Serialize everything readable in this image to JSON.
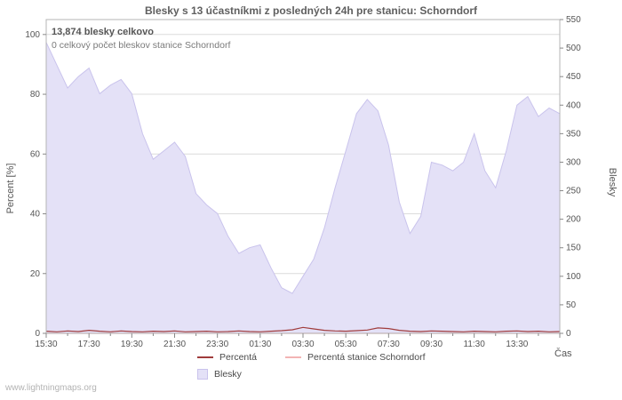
{
  "title": "Blesky s 13 účastníkmi z posledných 24h pre stanicu: Schorndorf",
  "annotations": {
    "total": "13,874 blesky celkovo",
    "station_total": "0 celkový počet bleskov stanice Schorndorf"
  },
  "watermark": "www.lightningmaps.org",
  "legend": {
    "items": [
      {
        "label": "Percentá",
        "color": "#a03c3c",
        "type": "line"
      },
      {
        "label": "Percentá stanice Schorndorf",
        "color": "#f2b4b4",
        "type": "line"
      },
      {
        "label": "Blesky",
        "color": "#e4e1f7",
        "type": "area"
      }
    ]
  },
  "chart_data": {
    "type": "area",
    "title": "Blesky s 13 účastníkmi z posledných 24h pre stanicu: Schorndorf",
    "xlabel": "Čas",
    "ylabel_left": "Percent  [%]",
    "ylabel_right": "Blesky",
    "legend_position": "bottom",
    "grid": true,
    "ylim_left": [
      0,
      105
    ],
    "ylim_right": [
      0,
      550
    ],
    "left_ticks": [
      0,
      20,
      40,
      60,
      80,
      100
    ],
    "right_ticks": [
      0,
      50,
      100,
      150,
      200,
      250,
      300,
      350,
      400,
      450,
      500,
      550
    ],
    "x_ticks": [
      "15:30",
      "17:30",
      "19:30",
      "21:30",
      "23:30",
      "01:30",
      "03:30",
      "05:30",
      "07:30",
      "09:30",
      "11:30",
      "13:30"
    ],
    "x": [
      "15:30",
      "16:00",
      "16:30",
      "17:00",
      "17:30",
      "18:00",
      "18:30",
      "19:00",
      "19:30",
      "20:00",
      "20:30",
      "21:00",
      "21:30",
      "22:00",
      "22:30",
      "23:00",
      "23:30",
      "00:00",
      "00:30",
      "01:00",
      "01:30",
      "02:00",
      "02:30",
      "03:00",
      "03:30",
      "04:00",
      "04:30",
      "05:00",
      "05:30",
      "06:00",
      "06:30",
      "07:00",
      "07:30",
      "08:00",
      "08:30",
      "09:00",
      "09:30",
      "10:00",
      "10:30",
      "11:00",
      "11:30",
      "12:00",
      "12:30",
      "13:00",
      "13:30",
      "14:00",
      "14:30",
      "15:00",
      "15:30"
    ],
    "series": [
      {
        "name": "Blesky",
        "axis": "right",
        "type": "area",
        "color": "#e4e1f7",
        "values": [
          510,
          470,
          430,
          450,
          465,
          420,
          435,
          445,
          420,
          350,
          305,
          320,
          335,
          310,
          245,
          225,
          210,
          170,
          140,
          150,
          155,
          115,
          80,
          70,
          100,
          130,
          185,
          255,
          320,
          385,
          410,
          390,
          330,
          230,
          175,
          205,
          300,
          295,
          285,
          300,
          350,
          285,
          255,
          320,
          400,
          415,
          380,
          395,
          385
        ]
      },
      {
        "name": "Percentá",
        "axis": "left",
        "type": "line",
        "color": "#a03c3c",
        "values": [
          0.7,
          0.5,
          0.8,
          0.6,
          1.0,
          0.7,
          0.5,
          0.8,
          0.6,
          0.5,
          0.7,
          0.6,
          0.8,
          0.5,
          0.6,
          0.7,
          0.5,
          0.6,
          0.8,
          0.6,
          0.5,
          0.7,
          0.9,
          1.2,
          2.0,
          1.5,
          1.0,
          0.8,
          0.7,
          0.9,
          1.1,
          1.8,
          1.6,
          1.0,
          0.7,
          0.6,
          0.8,
          0.7,
          0.6,
          0.5,
          0.7,
          0.6,
          0.5,
          0.7,
          0.8,
          0.6,
          0.7,
          0.5,
          0.6
        ]
      },
      {
        "name": "Percentá stanice Schorndorf",
        "axis": "left",
        "type": "line",
        "color": "#f2b4b4",
        "values": [
          0,
          0,
          0,
          0,
          0,
          0,
          0,
          0,
          0,
          0,
          0,
          0,
          0,
          0,
          0,
          0,
          0,
          0,
          0,
          0,
          0,
          0,
          0,
          0,
          0,
          0,
          0,
          0,
          0,
          0,
          0,
          0,
          0,
          0,
          0,
          0,
          0,
          0,
          0,
          0,
          0,
          0,
          0,
          0,
          0,
          0,
          0,
          0,
          0
        ]
      }
    ]
  }
}
